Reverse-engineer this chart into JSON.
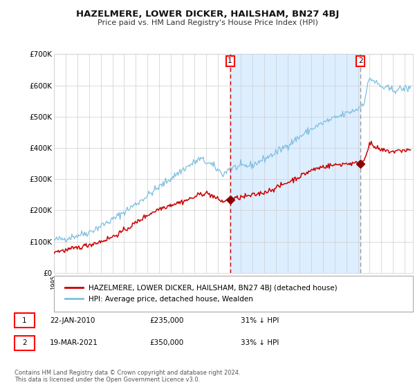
{
  "title": "HAZELMERE, LOWER DICKER, HAILSHAM, BN27 4BJ",
  "subtitle": "Price paid vs. HM Land Registry's House Price Index (HPI)",
  "ylim": [
    0,
    700000
  ],
  "yticks": [
    0,
    100000,
    200000,
    300000,
    400000,
    500000,
    600000,
    700000
  ],
  "ytick_labels": [
    "£0",
    "£100K",
    "£200K",
    "£300K",
    "£400K",
    "£500K",
    "£600K",
    "£700K"
  ],
  "hpi_color": "#7fbfdf",
  "price_color": "#cc0000",
  "marker_color": "#8b0000",
  "vline1_color": "#cc0000",
  "vline2_color": "#999999",
  "shade_color": "#ddeeff",
  "bg_color": "#ffffff",
  "grid_color": "#cccccc",
  "event1_x": 2010.06,
  "event1_y": 235000,
  "event2_x": 2021.22,
  "event2_y": 350000,
  "xlim_left": 1995.0,
  "xlim_right": 2025.7,
  "legend_entries": [
    "HAZELMERE, LOWER DICKER, HAILSHAM, BN27 4BJ (detached house)",
    "HPI: Average price, detached house, Wealden"
  ],
  "table_data": [
    [
      "1",
      "22-JAN-2010",
      "£235,000",
      "31% ↓ HPI"
    ],
    [
      "2",
      "19-MAR-2021",
      "£350,000",
      "33% ↓ HPI"
    ]
  ],
  "footnote1": "Contains HM Land Registry data © Crown copyright and database right 2024.",
  "footnote2": "This data is licensed under the Open Government Licence v3.0."
}
